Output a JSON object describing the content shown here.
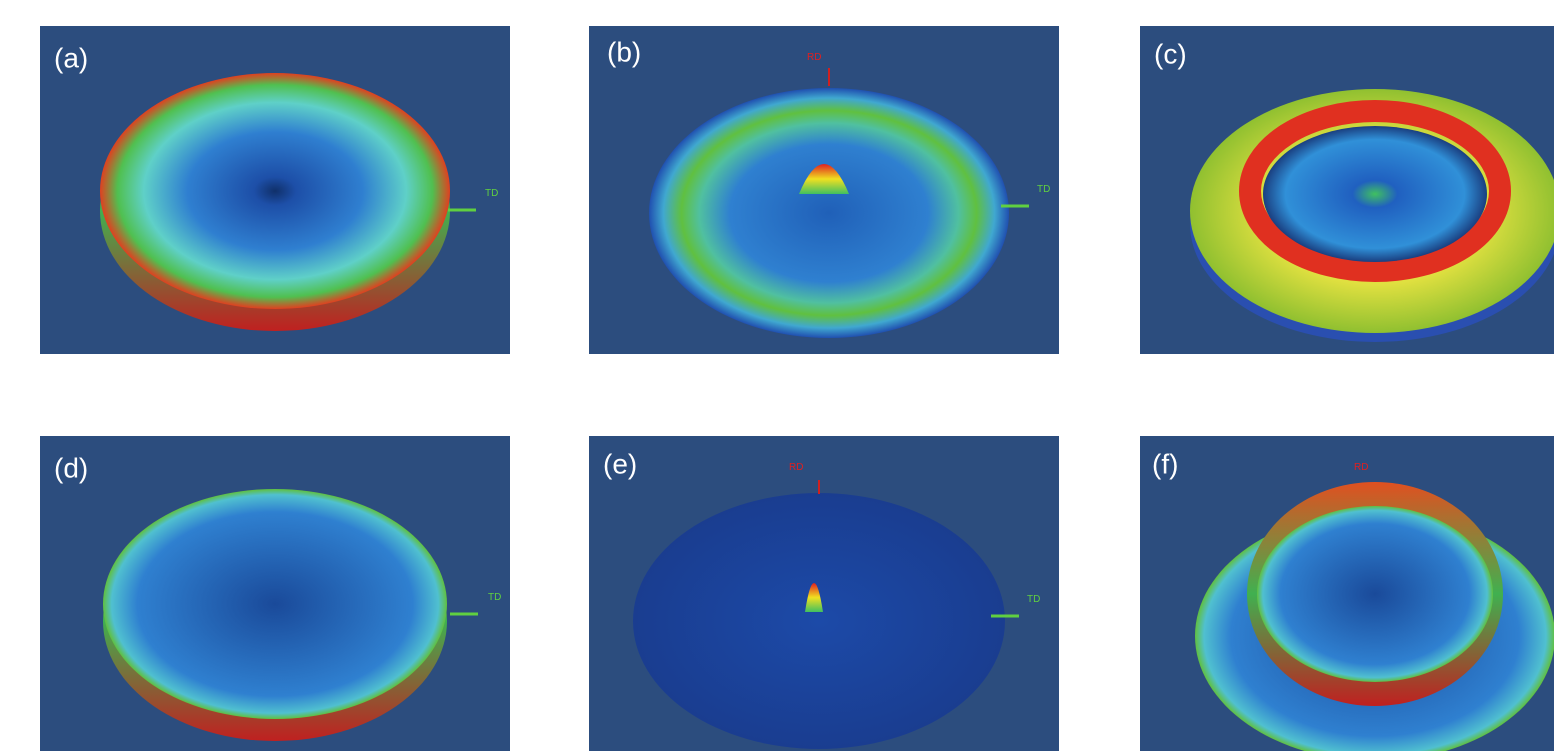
{
  "panels": [
    {
      "label": "(a)",
      "annotations": [
        "TD"
      ]
    },
    {
      "label": "(b)",
      "annotations": [
        "RD",
        "TD"
      ]
    },
    {
      "label": "(c)",
      "annotations": []
    },
    {
      "label": "(d)",
      "annotations": [
        "TD"
      ]
    },
    {
      "label": "(e)",
      "annotations": [
        "RD",
        "TD"
      ]
    },
    {
      "label": "(f)",
      "annotations": [
        "RD"
      ]
    }
  ]
}
